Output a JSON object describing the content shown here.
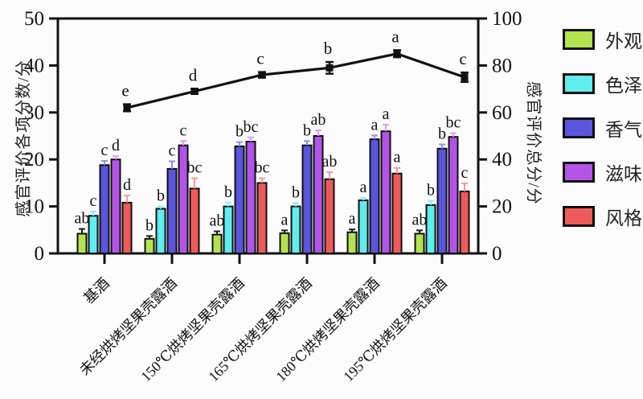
{
  "chart_data": {
    "type": "bar",
    "subtype": "grouped-bars-with-line-overlay",
    "title": "",
    "categories": [
      "基酒",
      "未经烘烤坚果壳露酒",
      "150℃烘烤坚果壳露酒",
      "165℃烘烤坚果壳露酒",
      "180℃烘烤坚果壳露酒",
      "195℃烘烤坚果壳露酒"
    ],
    "left_axis": {
      "label": "感官评价各项分数/分",
      "min": 0,
      "max": 50,
      "ticks": [
        0,
        10,
        20,
        30,
        40,
        50
      ]
    },
    "right_axis": {
      "label": "感官评价总分/分",
      "min": 0,
      "max": 100,
      "ticks": [
        0,
        20,
        40,
        60,
        80,
        100
      ]
    },
    "grid": false,
    "legend_position": "right-outside",
    "series": [
      {
        "name": "外观",
        "axis": "left",
        "color": "#b3e34e",
        "err_color": "#1c1c1c",
        "values": [
          4.2,
          3.1,
          4.0,
          4.3,
          4.5,
          4.2
        ],
        "errors": [
          1.0,
          0.6,
          0.7,
          0.6,
          0.6,
          0.7
        ],
        "letters": [
          "ab",
          "b",
          "ab",
          "a",
          "a",
          "ab"
        ]
      },
      {
        "name": "色泽",
        "axis": "left",
        "color": "#5feded",
        "err_color": "#8df0f0",
        "values": [
          8.0,
          9.5,
          10.0,
          10.0,
          11.3,
          10.3
        ],
        "errors": [
          0.9,
          0.5,
          0.8,
          0.7,
          0.5,
          0.9
        ],
        "letters": [
          "c",
          "b",
          "b",
          "b",
          "a",
          "b"
        ]
      },
      {
        "name": "香气",
        "axis": "left",
        "color": "#5a55dc",
        "err_color": "#928ef0",
        "values": [
          18.8,
          18.0,
          22.8,
          23.0,
          24.3,
          22.3
        ],
        "errors": [
          0.9,
          1.6,
          0.9,
          0.9,
          0.8,
          0.9
        ],
        "letters": [
          "c",
          "c",
          "b",
          "b",
          "a",
          "b"
        ]
      },
      {
        "name": "滋味",
        "axis": "left",
        "color": "#b354e8",
        "err_color": "#d9a0f0",
        "values": [
          20.0,
          23.0,
          23.8,
          25.0,
          26.0,
          24.8
        ],
        "errors": [
          0.7,
          0.9,
          0.9,
          1.2,
          1.4,
          0.8
        ],
        "letters": [
          "d",
          "c",
          "bc",
          "ab",
          "a",
          "bc"
        ]
      },
      {
        "name": "风格",
        "axis": "left",
        "color": "#ee5a5a",
        "err_color": "#f29c9c",
        "values": [
          10.8,
          13.8,
          15.0,
          15.8,
          17.0,
          13.2
        ],
        "errors": [
          1.5,
          2.2,
          1.0,
          1.5,
          1.2,
          1.7
        ],
        "letters": [
          "d",
          "bc",
          "bc",
          "ab",
          "a",
          "c"
        ]
      }
    ],
    "line_series": {
      "name": "感官评价总分",
      "axis": "right",
      "color": "#111111",
      "values": [
        62,
        69,
        76,
        79,
        85,
        75
      ],
      "errors": [
        1.5,
        1.0,
        1.2,
        2.5,
        1.5,
        2.0
      ],
      "letters": [
        "e",
        "d",
        "c",
        "b",
        "a",
        "c"
      ]
    }
  }
}
